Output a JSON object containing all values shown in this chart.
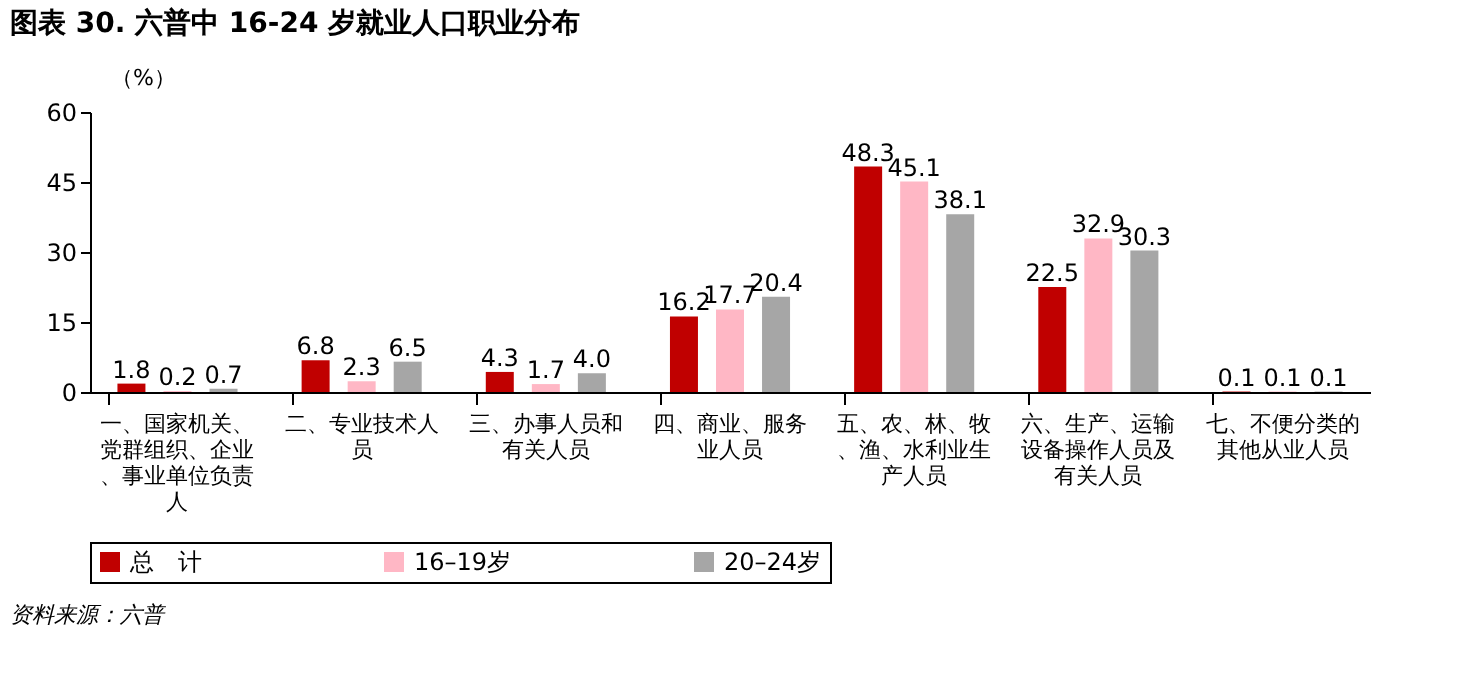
{
  "chart_data": {
    "type": "bar",
    "title": "图表 30. 六普中 16-24 岁就业人口职业分布",
    "ylabel": "（%）",
    "categories": [
      "一、国家机关、党群组织、企业、事业单位负责人",
      "二、专业技术人员",
      "三、办事人员和有关人员",
      "四、商业、服务业人员",
      "五、农、林、牧、渔、水利业生产人员",
      "六、生产、运输设备操作人员及有关人员",
      "七、不便分类的其他从业人员"
    ],
    "series": [
      {
        "name": "总　计",
        "color": "#c00000",
        "values": [
          1.8,
          6.8,
          4.3,
          16.2,
          48.3,
          22.5,
          0.1
        ],
        "value_labels": [
          "1.8",
          "6.8",
          "4.3",
          "16.2",
          "48.3",
          "22.5",
          "0.1"
        ]
      },
      {
        "name": "16–19岁",
        "color": "#ffb7c5",
        "values": [
          0.2,
          2.3,
          1.7,
          17.7,
          45.1,
          32.9,
          0.1
        ],
        "value_labels": [
          "0.2",
          "2.3",
          "1.7",
          "17.7",
          "45.1",
          "32.9",
          "0.1"
        ]
      },
      {
        "name": "20–24岁",
        "color": "#a6a6a6",
        "values": [
          0.7,
          6.5,
          4.0,
          20.4,
          38.1,
          30.3,
          0.1
        ],
        "value_labels": [
          "0.7",
          "6.5",
          "4.0",
          "20.4",
          "38.1",
          "30.3",
          "0.1"
        ]
      }
    ],
    "ylim": [
      0,
      60
    ],
    "yticks": [
      0,
      15,
      30,
      45,
      60
    ],
    "grid": false,
    "legend": "bottom",
    "annotations": [
      "资料来源：六普"
    ]
  }
}
